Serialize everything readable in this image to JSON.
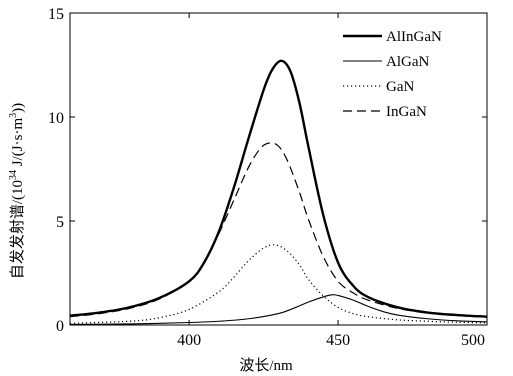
{
  "chart_data": {
    "type": "line",
    "xlabel": "波长/nm",
    "ylabel_prefix": "自发发射谱/(10",
    "ylabel_exp": "34",
    "ylabel_unit_pre": " J/(J·s·m",
    "ylabel_unit_exp": "3",
    "ylabel_suffix": "))",
    "xlim": [
      360,
      500
    ],
    "ylim": [
      0,
      15
    ],
    "xticks": [
      400,
      450,
      500
    ],
    "yticks": [
      0,
      5,
      10,
      15
    ],
    "grid": false,
    "legend_position": "top-right",
    "series": [
      {
        "name": "AlInGaN",
        "style": "solid-thick",
        "color": "#000000",
        "x": [
          360,
          370,
          380,
          390,
          400,
          405,
          410,
          415,
          420,
          425,
          428,
          431,
          434,
          437,
          440,
          445,
          450,
          455,
          460,
          470,
          480,
          490,
          500
        ],
        "y": [
          0.45,
          0.6,
          0.85,
          1.3,
          2.1,
          3.0,
          4.5,
          6.6,
          9.0,
          11.3,
          12.3,
          12.7,
          12.2,
          10.7,
          8.6,
          5.3,
          3.0,
          1.9,
          1.35,
          0.85,
          0.6,
          0.48,
          0.4
        ]
      },
      {
        "name": "AlGaN",
        "style": "solid-thin",
        "color": "#000000",
        "x": [
          360,
          380,
          400,
          410,
          420,
          430,
          435,
          440,
          445,
          448,
          450,
          455,
          460,
          465,
          470,
          480,
          490,
          500
        ],
        "y": [
          0.03,
          0.05,
          0.12,
          0.18,
          0.3,
          0.55,
          0.8,
          1.1,
          1.35,
          1.45,
          1.42,
          1.2,
          0.9,
          0.65,
          0.48,
          0.3,
          0.2,
          0.15
        ]
      },
      {
        "name": "GaN",
        "style": "dotted",
        "color": "#000000",
        "x": [
          360,
          380,
          390,
          400,
          410,
          415,
          420,
          425,
          429,
          433,
          437,
          440,
          445,
          450,
          455,
          460,
          470,
          480,
          490,
          500
        ],
        "y": [
          0.08,
          0.18,
          0.35,
          0.75,
          1.6,
          2.3,
          3.1,
          3.7,
          3.85,
          3.55,
          2.9,
          2.2,
          1.4,
          0.85,
          0.55,
          0.4,
          0.25,
          0.18,
          0.13,
          0.1
        ]
      },
      {
        "name": "InGaN",
        "style": "dashed",
        "color": "#000000",
        "x": [
          360,
          370,
          380,
          390,
          400,
          405,
          410,
          415,
          420,
          424,
          427,
          430,
          433,
          437,
          440,
          445,
          450,
          455,
          460,
          470,
          480,
          490,
          500
        ],
        "y": [
          0.4,
          0.55,
          0.8,
          1.25,
          2.1,
          3.0,
          4.4,
          6.0,
          7.6,
          8.5,
          8.75,
          8.6,
          7.9,
          6.4,
          5.1,
          3.3,
          2.1,
          1.55,
          1.2,
          0.8,
          0.58,
          0.45,
          0.38
        ]
      }
    ]
  }
}
